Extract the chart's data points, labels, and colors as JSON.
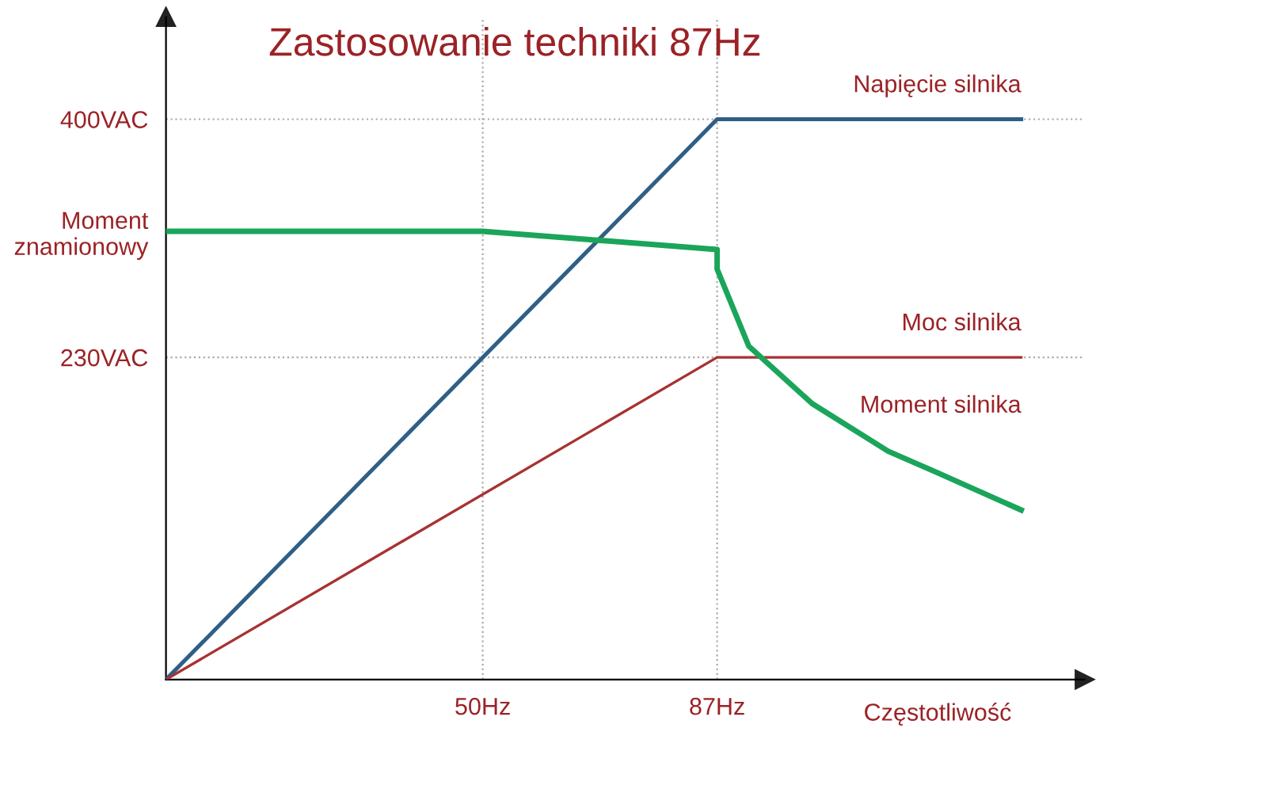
{
  "chart_data": {
    "type": "line",
    "title": "Zastosowanie techniki 87Hz",
    "xlabel": "Częstotliwość",
    "xlim": [
      0,
      145
    ],
    "ylim": [
      0,
      473
    ],
    "xticks": [
      {
        "value": 50,
        "label": "50Hz"
      },
      {
        "value": 87,
        "label": "87Hz"
      }
    ],
    "yticks": [
      {
        "value": 230,
        "label": "230VAC"
      },
      {
        "value": 320,
        "label": "Moment\nznamionowy"
      },
      {
        "value": 400,
        "label": "400VAC"
      }
    ],
    "series": [
      {
        "name": "Napięcie silnika",
        "color": "#2f5f86",
        "x": [
          0,
          87,
          135
        ],
        "values": [
          0,
          400,
          400
        ]
      },
      {
        "name": "Moc silnika",
        "color": "#a83232",
        "x": [
          0,
          87,
          135
        ],
        "values": [
          0,
          230,
          230
        ]
      },
      {
        "name": "Moment silnika",
        "color": "#1aa55a",
        "x": [
          0,
          50,
          87,
          87,
          92,
          102,
          114,
          121.6,
          135
        ],
        "values": [
          320,
          320,
          307,
          293,
          238,
          197,
          163,
          148,
          121
        ]
      }
    ],
    "ref_lines": [
      {
        "axis": "x",
        "value": 50,
        "color": "#aaaaaa",
        "line_style": "dotted"
      },
      {
        "axis": "x",
        "value": 87,
        "color": "#aaaaaa",
        "line_style": "dotted"
      },
      {
        "axis": "y",
        "value": 230,
        "color": "#aaaaaa",
        "line_style": "dotted"
      },
      {
        "axis": "y",
        "value": 400,
        "color": "#aaaaaa",
        "line_style": "dotted"
      }
    ],
    "grid": false,
    "legend": false,
    "marker": "none",
    "line_style": "solid"
  }
}
